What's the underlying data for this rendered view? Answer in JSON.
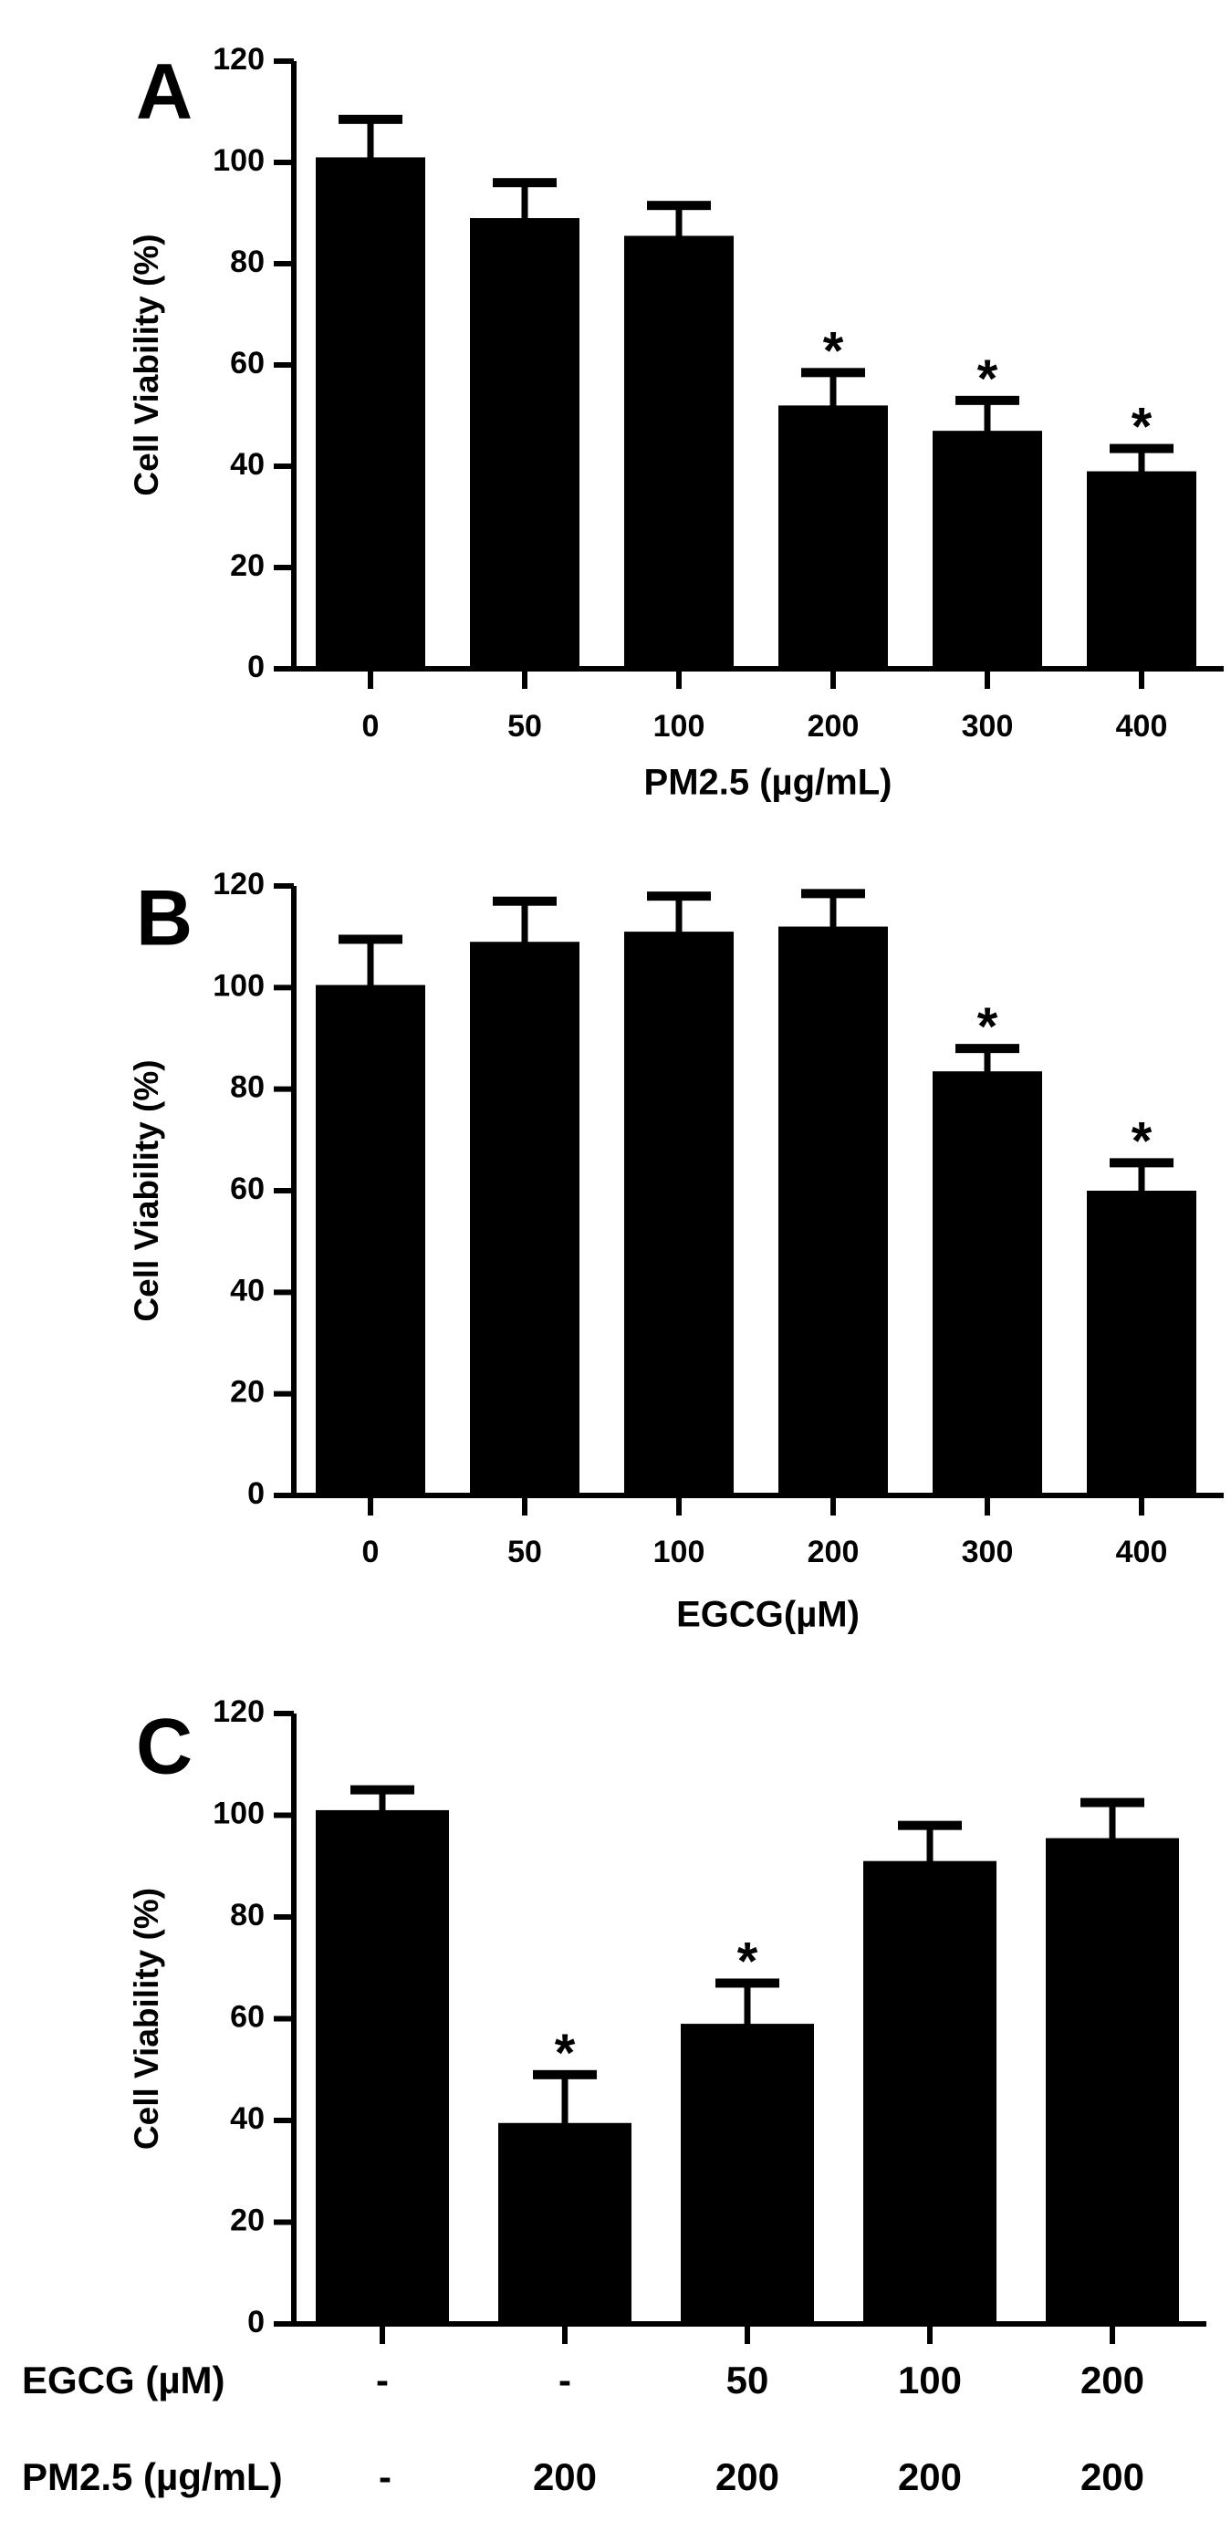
{
  "chart_data": [
    {
      "type": "bar",
      "panel": "A",
      "ylabel": "Cell Viability (%)",
      "xlabel": "PM2.5 (µg/mL)",
      "ylim": [
        0,
        120
      ],
      "yticks": [
        "0",
        "20",
        "40",
        "60",
        "80",
        "100",
        "120"
      ],
      "categories": [
        "0",
        "50",
        "100",
        "200",
        "300",
        "400"
      ],
      "values": [
        101,
        89,
        85.5,
        52,
        47,
        39
      ],
      "errors": [
        7.5,
        7,
        6,
        6.5,
        6,
        4.5
      ],
      "significance": [
        "",
        "",
        "",
        "*",
        "*",
        "*"
      ],
      "bar_color": "#000000"
    },
    {
      "type": "bar",
      "panel": "B",
      "ylabel": "Cell Viability (%)",
      "xlabel": "EGCG(µM)",
      "ylim": [
        0,
        120
      ],
      "yticks": [
        "0",
        "20",
        "40",
        "60",
        "80",
        "100",
        "120"
      ],
      "categories": [
        "0",
        "50",
        "100",
        "200",
        "300",
        "400"
      ],
      "values": [
        100.5,
        109,
        111,
        112,
        83.5,
        60
      ],
      "errors": [
        9,
        8,
        7,
        6.5,
        4.5,
        5.5
      ],
      "significance": [
        "",
        "",
        "",
        "",
        "*",
        "*"
      ],
      "bar_color": "#000000"
    },
    {
      "type": "bar",
      "panel": "C",
      "ylabel": "Cell Viability (%)",
      "ylim": [
        0,
        120
      ],
      "yticks": [
        "0",
        "20",
        "40",
        "60",
        "80",
        "100",
        "120"
      ],
      "values": [
        101,
        39.5,
        59,
        91,
        95.5
      ],
      "errors": [
        4,
        9.5,
        8,
        7,
        7
      ],
      "significance": [
        "",
        "*",
        "*",
        "",
        ""
      ],
      "rows": [
        {
          "label": "EGCG (µM)",
          "values": [
            "-",
            "-",
            "50",
            "100",
            "200"
          ]
        },
        {
          "label": "PM2.5 (µg/mL)",
          "values": [
            "-",
            "200",
            "200",
            "200",
            "200"
          ]
        }
      ],
      "bar_color": "#000000"
    }
  ]
}
